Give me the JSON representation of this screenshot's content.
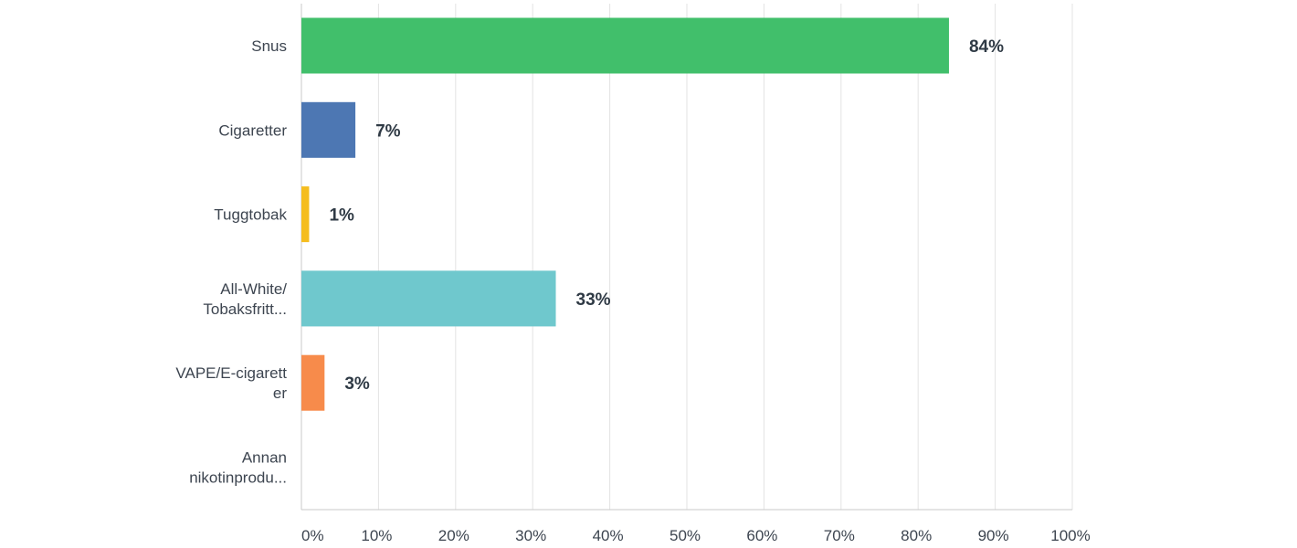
{
  "chart_data": {
    "type": "bar",
    "orientation": "horizontal",
    "categories": [
      [
        "Snus"
      ],
      [
        "Cigaretter"
      ],
      [
        "Tuggtobak"
      ],
      [
        "All-White/",
        "Tobaksfritt..."
      ],
      [
        "VAPE/E-cigarett",
        "er"
      ],
      [
        "Annan",
        "nikotinprodu..."
      ]
    ],
    "values": [
      84,
      7,
      1,
      33,
      3,
      null
    ],
    "value_labels": [
      "84%",
      "7%",
      "1%",
      "33%",
      "3%",
      ""
    ],
    "colors": [
      "#41bf6b",
      "#4d77b3",
      "#f5bd1f",
      "#6fc8cd",
      "#f78b4b",
      "#c792c9"
    ],
    "xlim": [
      0,
      100
    ],
    "xticks": [
      "0%",
      "10%",
      "20%",
      "30%",
      "40%",
      "50%",
      "60%",
      "70%",
      "80%",
      "90%",
      "100%"
    ],
    "grid": true,
    "title": "",
    "xlabel": "",
    "ylabel": ""
  }
}
